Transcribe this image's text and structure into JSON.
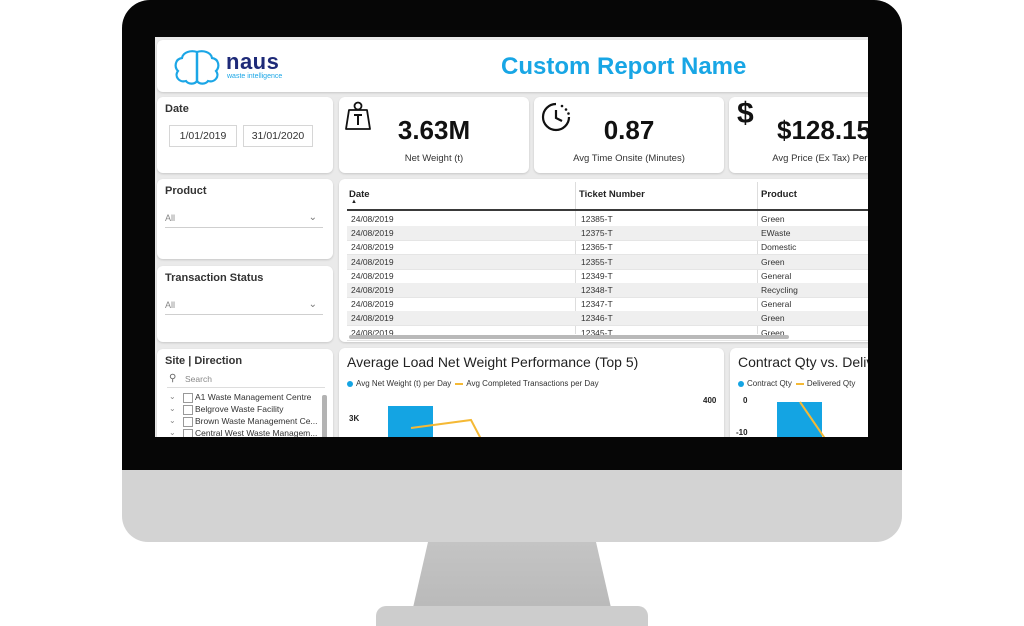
{
  "report": {
    "logo_word": "naus",
    "logo_tagline": "waste intelligence",
    "title": "Custom Report Name"
  },
  "filters": {
    "date": {
      "label": "Date",
      "start": "1/01/2019",
      "end": "31/01/2020"
    },
    "product": {
      "label": "Product",
      "value": "All"
    },
    "transaction_status": {
      "label": "Transaction Status",
      "value": "All"
    }
  },
  "kpis": [
    {
      "icon": "weight-icon",
      "value": "3.63M",
      "label": "Net Weight (t)"
    },
    {
      "icon": "clock-icon",
      "value": "0.87",
      "label": "Avg Time Onsite (Minutes)"
    },
    {
      "icon": "dollar-icon",
      "value": "$128.15",
      "label": "Avg Price (Ex Tax) Per T"
    }
  ],
  "table": {
    "columns": [
      "Date",
      "Ticket Number",
      "Product"
    ],
    "rows": [
      [
        "24/08/2019",
        "12385-T",
        "Green"
      ],
      [
        "24/08/2019",
        "12375-T",
        "EWaste"
      ],
      [
        "24/08/2019",
        "12365-T",
        "Domestic"
      ],
      [
        "24/08/2019",
        "12355-T",
        "Green"
      ],
      [
        "24/08/2019",
        "12349-T",
        "General"
      ],
      [
        "24/08/2019",
        "12348-T",
        "Recycling"
      ],
      [
        "24/08/2019",
        "12347-T",
        "General"
      ],
      [
        "24/08/2019",
        "12346-T",
        "Green"
      ],
      [
        "24/08/2019",
        "12345-T",
        "Green"
      ]
    ]
  },
  "site_direction": {
    "title": "Site | Direction",
    "search_placeholder": "Search",
    "items": [
      "A1 Waste Management Centre",
      "Belgrove Waste Facility",
      "Brown Waste Management Ce...",
      "Central West Waste Managem..."
    ]
  },
  "chart_left": {
    "title": "Average Load Net Weight Performance (Top 5)",
    "legend": [
      "Avg Net Weight (t) per Day",
      "Avg Completed Transactions per Day"
    ],
    "y_left_tick": "3K",
    "y_right_tick": "400"
  },
  "chart_right": {
    "title": "Contract Qty vs. Delivered Qty",
    "legend": [
      "Contract Qty",
      "Delivered Qty"
    ],
    "y_ticks": [
      "0",
      "-10"
    ]
  },
  "colors": {
    "accent": "#18a6e5",
    "bar": "#14a4e3",
    "line": "#f5b935",
    "logo_navy": "#1e2a78"
  }
}
